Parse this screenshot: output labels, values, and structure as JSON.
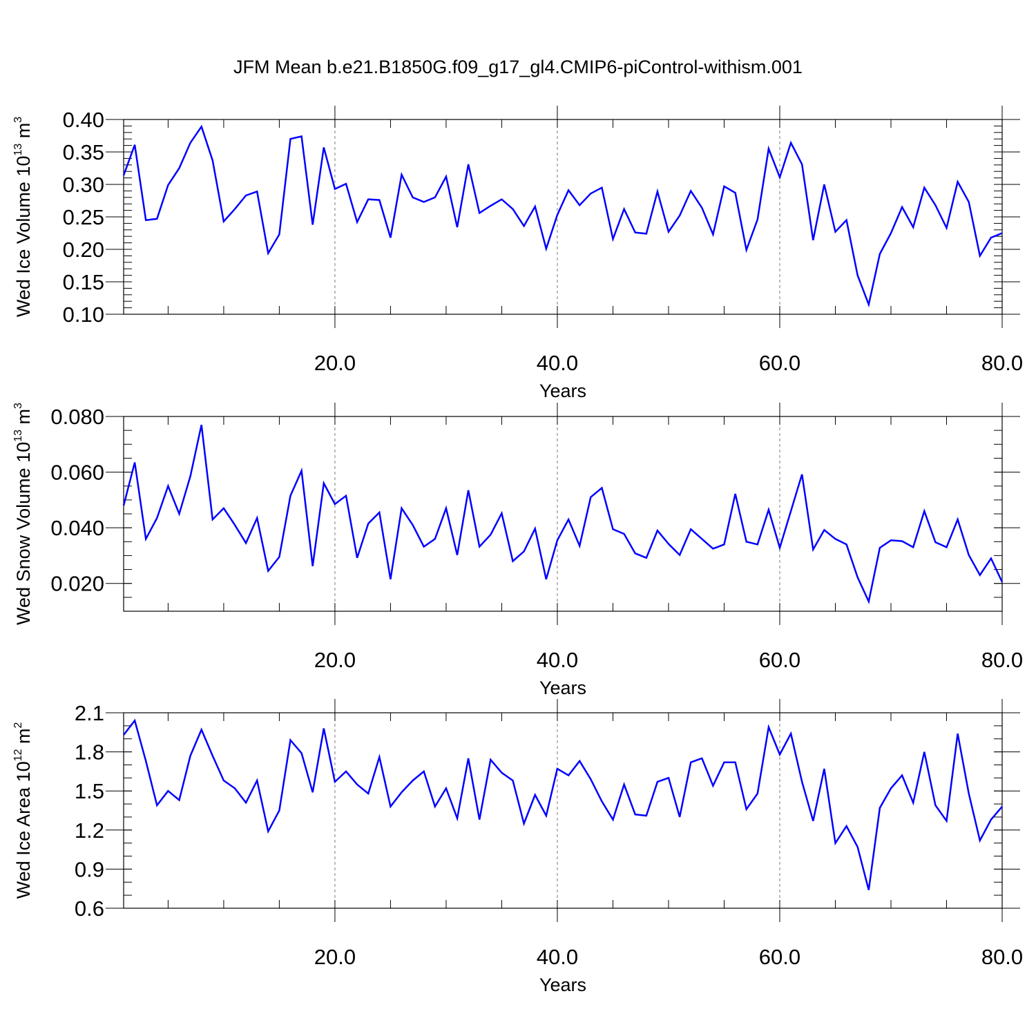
{
  "title": "JFM Mean b.e21.B1850G.f09_g17_gl4.CMIP6-piControl-withism.001",
  "chart_data": [
    {
      "type": "line",
      "ylabel": {
        "base": "Wed Ice Volume 10",
        "exp": "13",
        "unit": " m",
        "unitexp": "3"
      },
      "xlabel": "Years",
      "xlim": [
        1,
        80
      ],
      "ylim": [
        0.1,
        0.4
      ],
      "xticks": [
        20,
        40,
        60,
        80
      ],
      "xtick_labels": [
        "20.0",
        "40.0",
        "60.0",
        "80.0"
      ],
      "yticks": [
        0.1,
        0.15,
        0.2,
        0.25,
        0.3,
        0.35,
        0.4
      ],
      "ytick_labels": [
        "0.10",
        "0.15",
        "0.20",
        "0.25",
        "0.30",
        "0.35",
        "0.40"
      ],
      "yminor": 0.01,
      "x_grid": "dashed at major ticks",
      "line_color": "#0000ff",
      "x": [
        1,
        2,
        3,
        4,
        5,
        6,
        7,
        8,
        9,
        10,
        11,
        12,
        13,
        14,
        15,
        16,
        17,
        18,
        19,
        20,
        21,
        22,
        23,
        24,
        25,
        26,
        27,
        28,
        29,
        30,
        31,
        32,
        33,
        34,
        35,
        36,
        37,
        38,
        39,
        40,
        41,
        42,
        43,
        44,
        45,
        46,
        47,
        48,
        49,
        50,
        51,
        52,
        53,
        54,
        55,
        56,
        57,
        58,
        59,
        60,
        61,
        62,
        63,
        64,
        65,
        66,
        67,
        68,
        69,
        70,
        71,
        72,
        73,
        74,
        75,
        76,
        77,
        78,
        79,
        80
      ],
      "values": [
        0.314,
        0.361,
        0.245,
        0.247,
        0.299,
        0.325,
        0.364,
        0.389,
        0.337,
        0.243,
        0.262,
        0.283,
        0.289,
        0.194,
        0.223,
        0.37,
        0.374,
        0.238,
        0.357,
        0.293,
        0.301,
        0.242,
        0.277,
        0.276,
        0.218,
        0.315,
        0.28,
        0.273,
        0.28,
        0.312,
        0.234,
        0.331,
        0.256,
        0.267,
        0.277,
        0.262,
        0.236,
        0.266,
        0.201,
        0.253,
        0.291,
        0.268,
        0.286,
        0.295,
        0.216,
        0.262,
        0.226,
        0.224,
        0.289,
        0.227,
        0.252,
        0.29,
        0.264,
        0.223,
        0.297,
        0.287,
        0.199,
        0.246,
        0.355,
        0.311,
        0.364,
        0.331,
        0.214,
        0.3,
        0.227,
        0.245,
        0.16,
        0.115,
        0.193,
        0.225,
        0.265,
        0.234,
        0.295,
        0.268,
        0.233,
        0.304,
        0.273,
        0.19,
        0.218,
        0.225
      ]
    },
    {
      "type": "line",
      "ylabel": {
        "base": "Wed Snow Volume 10",
        "exp": "13",
        "unit": " m",
        "unitexp": "3"
      },
      "xlabel": "Years",
      "xlim": [
        1,
        80
      ],
      "ylim": [
        0.01,
        0.08
      ],
      "xticks": [
        20,
        40,
        60,
        80
      ],
      "xtick_labels": [
        "20.0",
        "40.0",
        "60.0",
        "80.0"
      ],
      "yticks": [
        0.02,
        0.04,
        0.06,
        0.08
      ],
      "ytick_labels": [
        "0.020",
        "0.040",
        "0.060",
        "0.080"
      ],
      "yminor": 0.005,
      "x_grid": "dashed at major ticks",
      "line_color": "#0000ff",
      "x": [
        1,
        2,
        3,
        4,
        5,
        6,
        7,
        8,
        9,
        10,
        11,
        12,
        13,
        14,
        15,
        16,
        17,
        18,
        19,
        20,
        21,
        22,
        23,
        24,
        25,
        26,
        27,
        28,
        29,
        30,
        31,
        32,
        33,
        34,
        35,
        36,
        37,
        38,
        39,
        40,
        41,
        42,
        43,
        44,
        45,
        46,
        47,
        48,
        49,
        50,
        51,
        52,
        53,
        54,
        55,
        56,
        57,
        58,
        59,
        60,
        61,
        62,
        63,
        64,
        65,
        66,
        67,
        68,
        69,
        70,
        71,
        72,
        73,
        74,
        75,
        76,
        77,
        78,
        79,
        80
      ],
      "values": [
        0.048,
        0.0635,
        0.036,
        0.0435,
        0.055,
        0.045,
        0.0585,
        0.077,
        0.043,
        0.047,
        0.041,
        0.0345,
        0.0435,
        0.0245,
        0.0295,
        0.0515,
        0.0605,
        0.0262,
        0.056,
        0.0485,
        0.0515,
        0.0292,
        0.0415,
        0.0455,
        0.0215,
        0.047,
        0.041,
        0.0332,
        0.036,
        0.047,
        0.0302,
        0.0535,
        0.0332,
        0.0375,
        0.0452,
        0.028,
        0.0315,
        0.0397,
        0.0215,
        0.0355,
        0.043,
        0.0335,
        0.051,
        0.0543,
        0.0395,
        0.0378,
        0.0308,
        0.0292,
        0.039,
        0.0342,
        0.0302,
        0.0395,
        0.036,
        0.0325,
        0.034,
        0.0522,
        0.035,
        0.034,
        0.0465,
        0.0328,
        0.046,
        0.0592,
        0.0322,
        0.0392,
        0.036,
        0.034,
        0.0222,
        0.0135,
        0.0328,
        0.0355,
        0.0352,
        0.033,
        0.046,
        0.0348,
        0.033,
        0.043,
        0.0302,
        0.023,
        0.029,
        0.0205
      ]
    },
    {
      "type": "line",
      "ylabel": {
        "base": "Wed Ice Area 10",
        "exp": "12",
        "unit": " m",
        "unitexp": "2"
      },
      "xlabel": "Years",
      "xlim": [
        1,
        80
      ],
      "ylim": [
        0.6,
        2.1
      ],
      "xticks": [
        20,
        40,
        60,
        80
      ],
      "xtick_labels": [
        "20.0",
        "40.0",
        "60.0",
        "80.0"
      ],
      "yticks": [
        0.6,
        0.9,
        1.2,
        1.5,
        1.8,
        2.1
      ],
      "ytick_labels": [
        "0.6",
        "0.9",
        "1.2",
        "1.5",
        "1.8",
        "2.1"
      ],
      "yminor": 0.1,
      "x_grid": "dashed at major ticks",
      "line_color": "#0000ff",
      "x": [
        1,
        2,
        3,
        4,
        5,
        6,
        7,
        8,
        9,
        10,
        11,
        12,
        13,
        14,
        15,
        16,
        17,
        18,
        19,
        20,
        21,
        22,
        23,
        24,
        25,
        26,
        27,
        28,
        29,
        30,
        31,
        32,
        33,
        34,
        35,
        36,
        37,
        38,
        39,
        40,
        41,
        42,
        43,
        44,
        45,
        46,
        47,
        48,
        49,
        50,
        51,
        52,
        53,
        54,
        55,
        56,
        57,
        58,
        59,
        60,
        61,
        62,
        63,
        64,
        65,
        66,
        67,
        68,
        69,
        70,
        71,
        72,
        73,
        74,
        75,
        76,
        77,
        78,
        79,
        80
      ],
      "values": [
        1.93,
        2.04,
        1.73,
        1.39,
        1.5,
        1.43,
        1.77,
        1.97,
        1.77,
        1.58,
        1.52,
        1.41,
        1.58,
        1.19,
        1.35,
        1.89,
        1.79,
        1.49,
        1.98,
        1.57,
        1.65,
        1.55,
        1.48,
        1.76,
        1.38,
        1.49,
        1.58,
        1.65,
        1.38,
        1.52,
        1.29,
        1.75,
        1.28,
        1.74,
        1.64,
        1.58,
        1.25,
        1.47,
        1.31,
        1.67,
        1.62,
        1.73,
        1.59,
        1.42,
        1.28,
        1.55,
        1.32,
        1.31,
        1.57,
        1.6,
        1.3,
        1.72,
        1.75,
        1.54,
        1.72,
        1.72,
        1.36,
        1.48,
        1.99,
        1.78,
        1.94,
        1.57,
        1.27,
        1.67,
        1.1,
        1.23,
        1.07,
        0.74,
        1.37,
        1.52,
        1.62,
        1.41,
        1.8,
        1.39,
        1.27,
        1.94,
        1.48,
        1.12,
        1.28,
        1.38
      ]
    }
  ]
}
